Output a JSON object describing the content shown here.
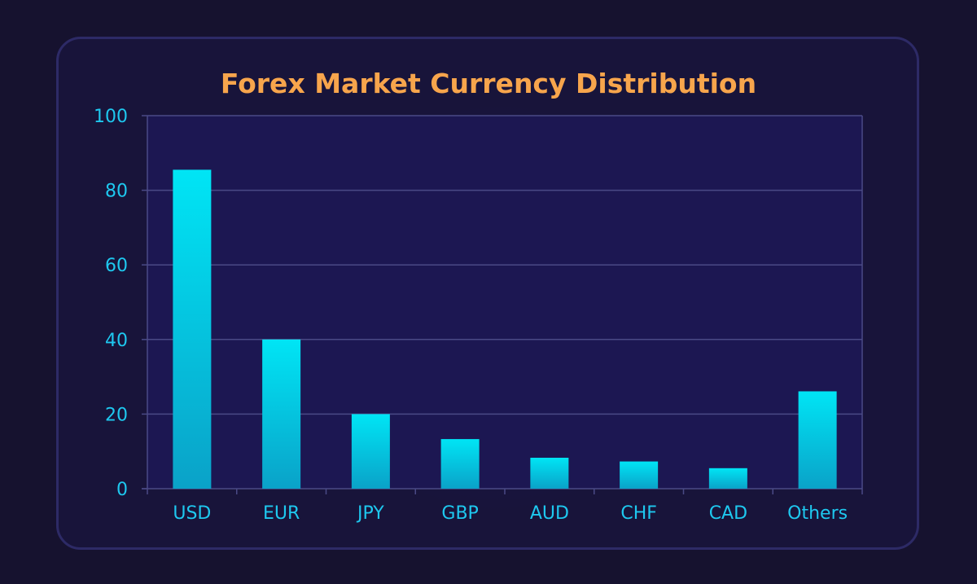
{
  "chart_data": {
    "type": "bar",
    "title": "Forex Market Currency Distribution",
    "xlabel": "",
    "ylabel": "",
    "categories": [
      "USD",
      "EUR",
      "JPY",
      "GBP",
      "AUD",
      "CHF",
      "CAD",
      "Others"
    ],
    "values": [
      85.5,
      40,
      20,
      13.3,
      8.3,
      7.3,
      5.5,
      26.1
    ],
    "ylim": [
      0,
      100
    ],
    "yticks": [
      "0",
      "20",
      "40",
      "60",
      "80",
      "100"
    ],
    "grid": true,
    "legend": "none"
  },
  "colors": {
    "background": "#16122f",
    "card": "#18143a",
    "plot_area": "#1c1752",
    "bar_top": "#00e5f5",
    "bar_bottom": "#0aa2c8",
    "grid": "#4a4a86",
    "axis_text": "#1ec8ef",
    "title": "#f7a54c"
  }
}
